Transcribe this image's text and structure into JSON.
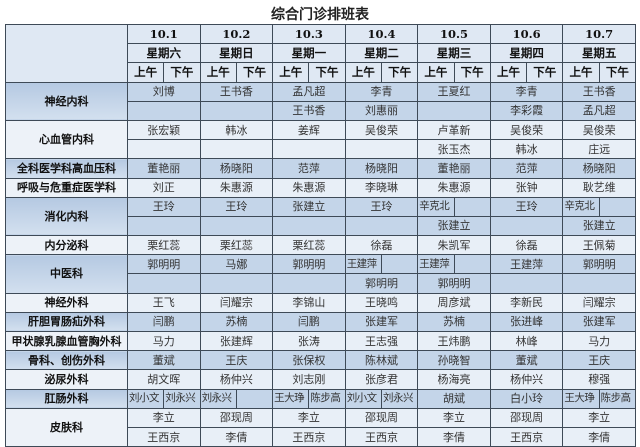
{
  "title": "综合门诊排班表",
  "days": [
    {
      "date": "10.1",
      "weekday": "星期六"
    },
    {
      "date": "10.2",
      "weekday": "星期日"
    },
    {
      "date": "10.3",
      "weekday": "星期一"
    },
    {
      "date": "10.4",
      "weekday": "星期二"
    },
    {
      "date": "10.5",
      "weekday": "星期三"
    },
    {
      "date": "10.6",
      "weekday": "星期四"
    },
    {
      "date": "10.7",
      "weekday": "星期五"
    }
  ],
  "am_label": "上午",
  "pm_label": "下午",
  "departments": [
    {
      "name": "神经内科",
      "shade": "dark",
      "rows": [
        [
          {
            "full": "刘博"
          },
          {
            "full": "王书香"
          },
          {
            "full": "孟凡超"
          },
          {
            "full": "李青"
          },
          {
            "full": "王夏红"
          },
          {
            "full": "李青"
          },
          {
            "full": "王书香"
          }
        ],
        [
          {
            "full": ""
          },
          {
            "full": ""
          },
          {
            "full": "王书香"
          },
          {
            "full": "刘惠丽"
          },
          {
            "full": ""
          },
          {
            "full": "李彩霞"
          },
          {
            "full": "孟凡超"
          }
        ]
      ]
    },
    {
      "name": "心血管内科",
      "shade": "light",
      "rows": [
        [
          {
            "full": "张宏颖"
          },
          {
            "full": "韩冰"
          },
          {
            "full": "姜辉"
          },
          {
            "full": "吴俊荣"
          },
          {
            "full": "卢革新"
          },
          {
            "full": "吴俊荣"
          },
          {
            "full": "吴俊荣"
          }
        ],
        [
          {
            "full": ""
          },
          {
            "full": ""
          },
          {
            "full": ""
          },
          {
            "full": ""
          },
          {
            "full": "张玉杰"
          },
          {
            "full": "韩冰"
          },
          {
            "full": "庄远"
          }
        ]
      ]
    },
    {
      "name": "全科医学科高血压科",
      "shade": "dark",
      "rows": [
        [
          {
            "full": "董艳丽"
          },
          {
            "full": "杨晓阳"
          },
          {
            "full": "范萍"
          },
          {
            "full": "杨晓阳"
          },
          {
            "full": "董艳丽"
          },
          {
            "full": "范萍"
          },
          {
            "full": "杨晓阳"
          }
        ]
      ]
    },
    {
      "name": "呼吸与危重症医学科",
      "shade": "light",
      "rows": [
        [
          {
            "full": "刘正"
          },
          {
            "full": "朱惠源"
          },
          {
            "full": "朱惠源"
          },
          {
            "full": "李晓琳"
          },
          {
            "full": "朱惠源"
          },
          {
            "full": "张钟"
          },
          {
            "full": "耿艺维"
          }
        ]
      ]
    },
    {
      "name": "消化内科",
      "shade": "dark",
      "rows": [
        [
          {
            "full": "王玲"
          },
          {
            "full": "王玲"
          },
          {
            "full": "张建立"
          },
          {
            "full": "王玲"
          },
          {
            "am": "辛克北",
            "pm": ""
          },
          {
            "full": "王玲"
          },
          {
            "am": "辛克北",
            "pm": ""
          }
        ],
        [
          {
            "full": ""
          },
          {
            "full": ""
          },
          {
            "full": ""
          },
          {
            "full": ""
          },
          {
            "full": "张建立"
          },
          {
            "full": ""
          },
          {
            "full": "张建立"
          }
        ]
      ]
    },
    {
      "name": "内分泌科",
      "shade": "light",
      "rows": [
        [
          {
            "full": "栗红蕊"
          },
          {
            "full": "栗红蕊"
          },
          {
            "full": "栗红蕊"
          },
          {
            "full": "徐磊"
          },
          {
            "full": "朱凯军"
          },
          {
            "full": "徐磊"
          },
          {
            "full": "王佩菊"
          }
        ]
      ]
    },
    {
      "name": "中医科",
      "shade": "dark",
      "rows": [
        [
          {
            "full": "郭明明"
          },
          {
            "full": "马娜"
          },
          {
            "full": "郭明明"
          },
          {
            "am": "王建萍",
            "pm": ""
          },
          {
            "am": "王建萍",
            "pm": ""
          },
          {
            "full": "王建萍"
          },
          {
            "full": "郭明明"
          }
        ],
        [
          {
            "full": ""
          },
          {
            "full": ""
          },
          {
            "full": ""
          },
          {
            "full": "郭明明"
          },
          {
            "full": "郭明明"
          },
          {
            "full": ""
          },
          {
            "full": ""
          }
        ]
      ]
    },
    {
      "name": "神经外科",
      "shade": "light",
      "rows": [
        [
          {
            "full": "王飞"
          },
          {
            "full": "闫耀宗"
          },
          {
            "full": "李锦山"
          },
          {
            "full": "王晓鸣"
          },
          {
            "full": "周彦斌"
          },
          {
            "full": "李新民"
          },
          {
            "full": "闫耀宗"
          }
        ]
      ]
    },
    {
      "name": "肝胆胃肠疝外科",
      "shade": "dark",
      "rows": [
        [
          {
            "full": "闫鹏"
          },
          {
            "full": "苏楠"
          },
          {
            "full": "闫鹏"
          },
          {
            "full": "张建军"
          },
          {
            "full": "苏楠"
          },
          {
            "full": "张进峰"
          },
          {
            "full": "张建军"
          }
        ]
      ]
    },
    {
      "name": "甲状腺乳腺血管胸外科",
      "shade": "light",
      "rows": [
        [
          {
            "full": "马力"
          },
          {
            "full": "张建辉"
          },
          {
            "full": "张涛"
          },
          {
            "full": "王志强"
          },
          {
            "full": "王炜鹏"
          },
          {
            "full": "林峰"
          },
          {
            "full": "马力"
          }
        ]
      ]
    },
    {
      "name": "骨科、创伤外科",
      "shade": "dark",
      "rows": [
        [
          {
            "full": "董斌"
          },
          {
            "full": "王庆"
          },
          {
            "full": "张保权"
          },
          {
            "full": "陈林斌"
          },
          {
            "full": "孙晓智"
          },
          {
            "full": "董斌"
          },
          {
            "full": "王庆"
          }
        ]
      ]
    },
    {
      "name": "泌尿外科",
      "shade": "light",
      "rows": [
        [
          {
            "full": "胡文晖"
          },
          {
            "full": "杨仲兴"
          },
          {
            "full": "刘志刚"
          },
          {
            "full": "张彦君"
          },
          {
            "full": "杨海亮"
          },
          {
            "full": "杨仲兴"
          },
          {
            "full": "穆强"
          }
        ]
      ]
    },
    {
      "name": "肛肠外科",
      "shade": "dark",
      "rows": [
        [
          {
            "am": "刘小文",
            "pm": "刘永兴"
          },
          {
            "am": "刘永兴",
            "pm": ""
          },
          {
            "am": "王大琤",
            "pm": "陈步高"
          },
          {
            "am": "刘小文",
            "pm": "刘永兴"
          },
          {
            "full": "胡斌"
          },
          {
            "full": "白小玲"
          },
          {
            "am": "王大琤",
            "pm": "陈步高"
          }
        ]
      ]
    },
    {
      "name": "皮肤科",
      "shade": "light",
      "rows": [
        [
          {
            "full": "李立"
          },
          {
            "full": "邵现周"
          },
          {
            "full": "李立"
          },
          {
            "full": "邵现周"
          },
          {
            "full": "李立"
          },
          {
            "full": "邵现周"
          },
          {
            "full": "李立"
          }
        ],
        [
          {
            "full": "王西京"
          },
          {
            "full": "李倩"
          },
          {
            "full": "王西京"
          },
          {
            "full": "王西京"
          },
          {
            "full": "李倩"
          },
          {
            "full": "王西京"
          },
          {
            "full": "李倩"
          }
        ]
      ]
    }
  ]
}
